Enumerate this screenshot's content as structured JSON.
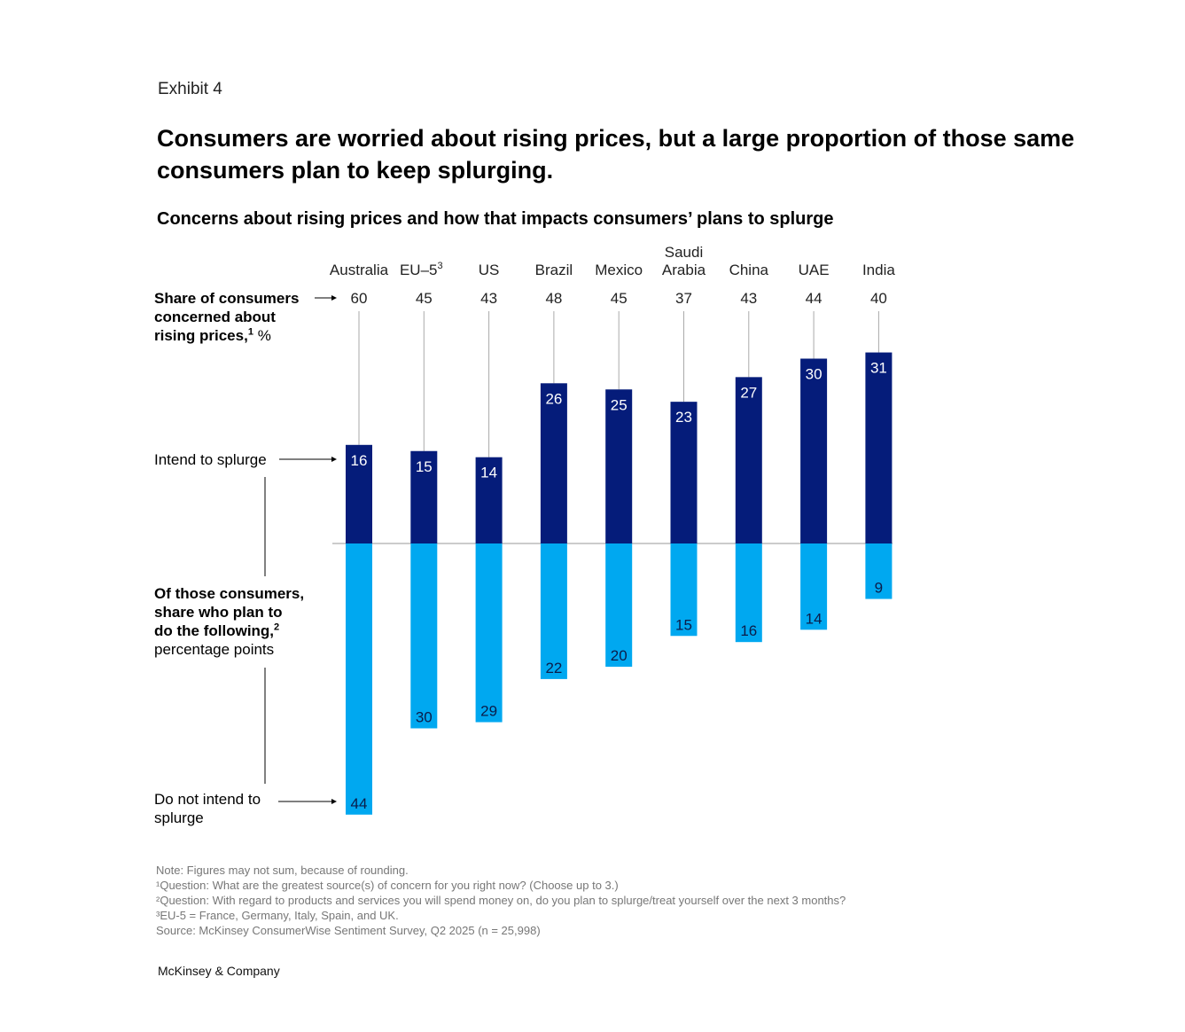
{
  "exhibit_label": "Exhibit 4",
  "title": "Consumers are worried about rising prices, but a large proportion of those same consumers plan to keep splurging.",
  "subtitle": "Concerns about rising prices and how that impacts consumers’ plans to splurge",
  "row_labels": {
    "concern_line1": "Share of consumers",
    "concern_line2": "concerned about",
    "concern_line3": "rising prices,",
    "concern_sup": "1",
    "concern_unit": "%",
    "intend": "Intend to splurge",
    "plan_line1": "Of those consumers,",
    "plan_line2": "share who plan to",
    "plan_line3": "do the following,",
    "plan_sup": "2",
    "plan_unit": "percentage points",
    "not_intend_line1": "Do not intend to",
    "not_intend_line2": "splurge"
  },
  "chart_data": {
    "type": "bar",
    "categories": [
      "Australia",
      "EU–5",
      "US",
      "Brazil",
      "Mexico",
      "Saudi Arabia",
      "China",
      "UAE",
      "India"
    ],
    "category_sups": [
      "",
      "3",
      "",
      "",
      "",
      "",
      "",
      "",
      ""
    ],
    "concern_share": [
      60,
      45,
      43,
      48,
      45,
      37,
      43,
      44,
      40
    ],
    "series": [
      {
        "name": "Intend to splurge",
        "values": [
          16,
          15,
          14,
          26,
          25,
          23,
          27,
          30,
          31
        ]
      },
      {
        "name": "Do not intend to splurge",
        "values": [
          44,
          30,
          29,
          22,
          20,
          15,
          16,
          14,
          9
        ]
      }
    ],
    "colors": {
      "intend": "#051c7a",
      "not_intend": "#00a8f0",
      "label_on_dark": "#ffffff",
      "label_on_light": "#0b1d4a"
    }
  },
  "notes": [
    "Note: Figures may not sum, because of rounding.",
    "¹Question: What are the greatest source(s) of concern for you right now? (Choose up to 3.)",
    "²Question: With regard to products and services you will spend money on, do you plan to splurge/treat yourself over the next 3 months?",
    "³EU-5 = France, Germany, Italy, Spain, and UK.",
    "Source: McKinsey ConsumerWise Sentiment Survey, Q2 2025 (n = 25,998)"
  ],
  "brand": "McKinsey & Company"
}
